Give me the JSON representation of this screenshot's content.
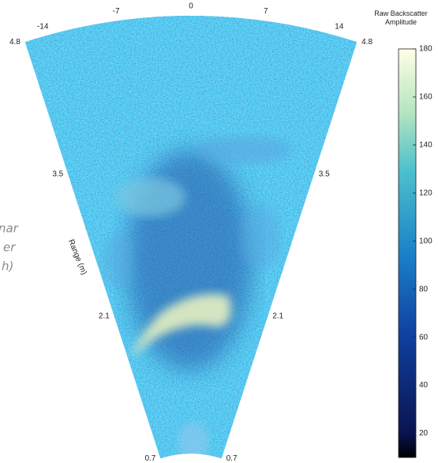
{
  "chart_data": {
    "type": "sonar",
    "colorbar_title": "Raw Backscatter Amplitude",
    "xticks": [
      -14,
      -7,
      0,
      7,
      14
    ],
    "xlim": [
      -16,
      16
    ],
    "yticks": [
      0.7,
      2.1,
      3.5,
      4.8
    ],
    "ylim": [
      0.7,
      4.8
    ],
    "ylabel": "Range (m)",
    "colorbar_ticks": [
      20,
      40,
      60,
      80,
      100,
      120,
      140,
      160,
      180
    ],
    "colorbar_lim": [
      10,
      180
    ],
    "annotations": [
      "nar",
      "er",
      "h)"
    ]
  }
}
